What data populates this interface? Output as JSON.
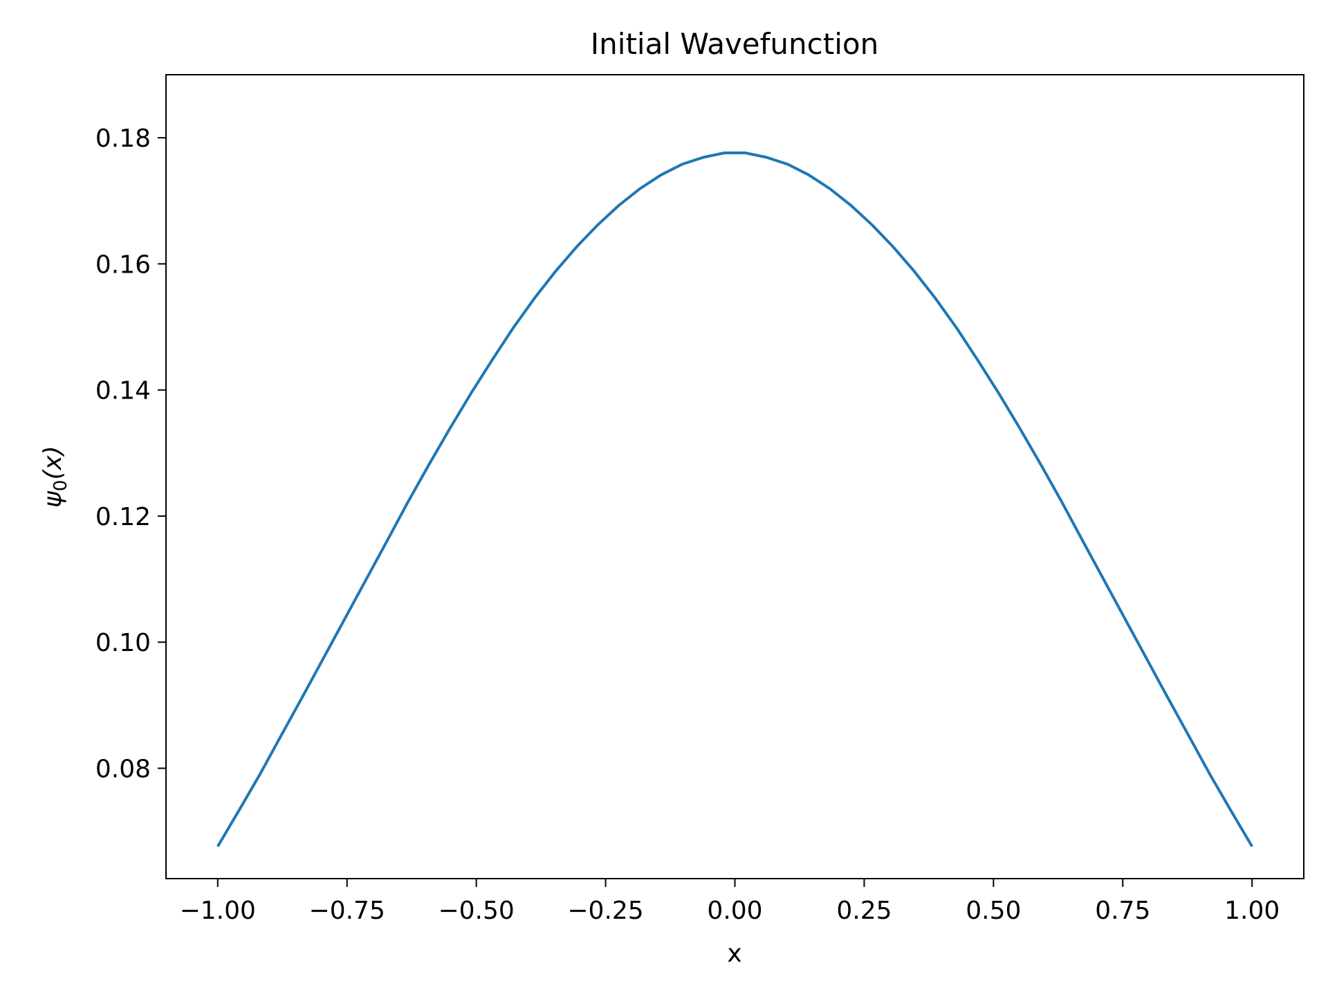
{
  "chart_data": {
    "type": "line",
    "title": "Initial Wavefunction",
    "xlabel": "x",
    "ylabel": "ψ0(x)",
    "ylabel_symbol": "ψ",
    "ylabel_subscript": "0",
    "ylabel_arg": "(x)",
    "xlim": [
      -1.1,
      1.1
    ],
    "ylim": [
      0.0625,
      0.19
    ],
    "xticks": [
      -1.0,
      -0.75,
      -0.5,
      -0.25,
      0.0,
      0.25,
      0.5,
      0.75,
      1.0
    ],
    "xtick_labels": [
      "−1.00",
      "−0.75",
      "−0.50",
      "−0.25",
      "0.00",
      "0.25",
      "0.50",
      "0.75",
      "1.00"
    ],
    "yticks": [
      0.08,
      0.1,
      0.12,
      0.14,
      0.16,
      0.18
    ],
    "ytick_labels": [
      "0.08",
      "0.10",
      "0.12",
      "0.14",
      "0.16",
      "0.18"
    ],
    "grid": false,
    "line_color": "#1f77b4",
    "series": [
      {
        "x": [
          -1.0,
          -0.959,
          -0.918,
          -0.878,
          -0.837,
          -0.796,
          -0.755,
          -0.714,
          -0.673,
          -0.633,
          -0.592,
          -0.551,
          -0.51,
          -0.469,
          -0.429,
          -0.388,
          -0.347,
          -0.306,
          -0.265,
          -0.224,
          -0.184,
          -0.143,
          -0.102,
          -0.061,
          -0.02,
          0.02,
          0.061,
          0.102,
          0.143,
          0.184,
          0.224,
          0.265,
          0.306,
          0.347,
          0.388,
          0.429,
          0.469,
          0.51,
          0.551,
          0.592,
          0.633,
          0.673,
          0.714,
          0.755,
          0.796,
          0.837,
          0.878,
          0.918,
          0.959,
          1.0
        ],
        "y": [
          0.0676,
          0.0733,
          0.0791,
          0.0851,
          0.0912,
          0.0974,
          0.1036,
          0.1098,
          0.116,
          0.1221,
          0.1281,
          0.1339,
          0.1395,
          0.1448,
          0.1498,
          0.1545,
          0.1588,
          0.1627,
          0.1662,
          0.1693,
          0.1719,
          0.1741,
          0.1758,
          0.1769,
          0.1776,
          0.1776,
          0.1769,
          0.1758,
          0.1741,
          0.1719,
          0.1693,
          0.1662,
          0.1627,
          0.1588,
          0.1545,
          0.1498,
          0.1448,
          0.1395,
          0.1339,
          0.1281,
          0.1221,
          0.116,
          0.1098,
          0.1036,
          0.0974,
          0.0912,
          0.0851,
          0.0791,
          0.0733,
          0.0676
        ]
      }
    ]
  }
}
